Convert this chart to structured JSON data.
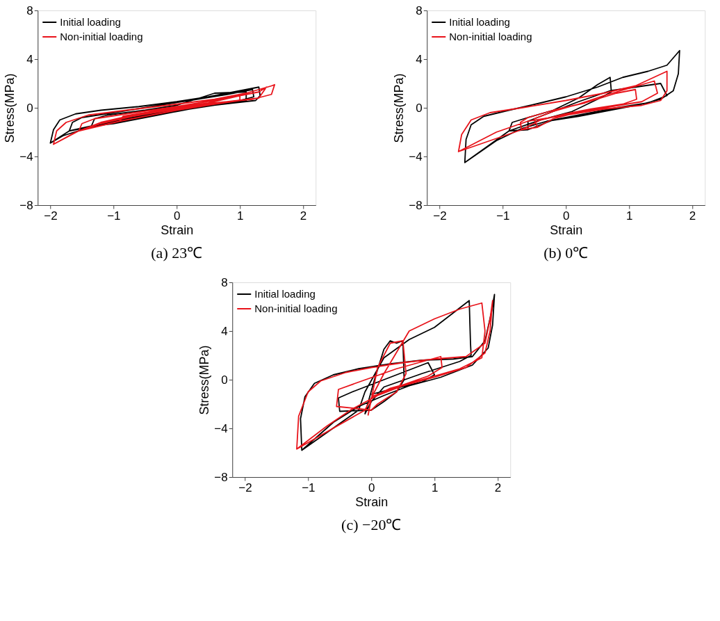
{
  "chart_data": [
    {
      "type": "line",
      "title": "(a) 23℃",
      "xlabel": "Strain",
      "ylabel": "Stress(MPa)",
      "xlim": [
        -2.2,
        2.2
      ],
      "xticks": [
        -2,
        -1,
        0,
        1,
        2
      ],
      "ylim": [
        -8,
        8
      ],
      "yticks": [
        -8,
        -4,
        0,
        4,
        8
      ],
      "grid": false,
      "legend": "top left",
      "line_style": "solid",
      "marker": "none",
      "series": [
        {
          "name": "Initial loading",
          "color": "#000000",
          "x": [
            -2.0,
            -1.95,
            -1.85,
            -1.6,
            -1.2,
            -0.6,
            0,
            0.5,
            0.9,
            1.3,
            1.32,
            1.25,
            0.9,
            0.4,
            0,
            -0.5,
            -1.0,
            -1.5,
            -1.8,
            -2.0,
            -1.7,
            -1.65,
            -1.5,
            -1.0,
            -0.4,
            0.2,
            0.8,
            1.2,
            1.22,
            1.0,
            0.5,
            0,
            -0.6,
            -1.2,
            -1.7,
            -1.35,
            -1.3,
            -1.1,
            -0.5,
            0,
            0.6,
            1.1,
            1.1,
            0.7,
            0.2,
            -0.3,
            -0.7,
            -1.0,
            -1.35
          ],
          "values": [
            -2.9,
            -1.8,
            -1.0,
            -0.5,
            -0.2,
            0.1,
            0.5,
            0.9,
            1.3,
            1.7,
            1.0,
            0.6,
            0.4,
            0.1,
            -0.2,
            -0.6,
            -1.1,
            -1.8,
            -2.3,
            -2.9,
            -1.9,
            -1.2,
            -0.8,
            -0.4,
            0.1,
            0.6,
            1.1,
            1.5,
            0.9,
            0.6,
            0.2,
            -0.3,
            -0.8,
            -1.4,
            -1.9,
            -1.5,
            -0.9,
            -0.6,
            -0.2,
            0.2,
            1.2,
            1.3,
            0.6,
            0.3,
            -0.1,
            -0.6,
            -1.0,
            -1.3,
            -1.5
          ]
        },
        {
          "name": "Non-initial loading",
          "color": "#e8131a",
          "x": [
            -1.95,
            -1.9,
            -1.75,
            -1.4,
            -0.8,
            0,
            0.6,
            1.1,
            1.5,
            1.55,
            1.5,
            1.2,
            0.6,
            0,
            -0.6,
            -1.2,
            -1.6,
            -1.95,
            -1.55,
            -1.5,
            -1.3,
            -0.8,
            0,
            0.7,
            1.3,
            1.42,
            1.3,
            0.8,
            0,
            -0.7,
            -1.2,
            -1.55,
            -0.9,
            -0.85,
            -0.5,
            0,
            0.5,
            1.0,
            1.0,
            0.6,
            0,
            -0.5,
            -0.9
          ],
          "values": [
            -3.0,
            -1.9,
            -1.2,
            -0.6,
            -0.2,
            0.3,
            0.7,
            1.2,
            1.8,
            1.9,
            1.1,
            0.7,
            0.4,
            0,
            -0.5,
            -1.2,
            -2.0,
            -3.0,
            -1.9,
            -1.3,
            -0.9,
            -0.5,
            0.1,
            0.7,
            1.3,
            1.7,
            0.8,
            0.5,
            -0.1,
            -0.7,
            -1.3,
            -1.9,
            -1.1,
            -0.7,
            -0.4,
            0,
            0.4,
            1.0,
            0.6,
            0.3,
            -0.2,
            -0.7,
            -1.1
          ]
        }
      ]
    },
    {
      "type": "line",
      "title": "(b) 0℃",
      "xlabel": "Strain",
      "ylabel": "Stress(MPa)",
      "xlim": [
        -2.2,
        2.2
      ],
      "xticks": [
        -2,
        -1,
        0,
        1,
        2
      ],
      "ylim": [
        -8,
        8
      ],
      "yticks": [
        -8,
        -4,
        0,
        4,
        8
      ],
      "grid": false,
      "legend": "top left",
      "line_style": "solid",
      "marker": "none",
      "series": [
        {
          "name": "Initial loading",
          "color": "#000000",
          "x": [
            -1.6,
            -1.58,
            -1.5,
            -1.3,
            -0.9,
            -0.4,
            0,
            0.5,
            0.9,
            1.3,
            1.6,
            1.8,
            1.78,
            1.7,
            1.5,
            1.2,
            0.8,
            0.2,
            -0.3,
            -0.7,
            -1.1,
            -1.6,
            -0.9,
            -0.85,
            -0.6,
            -0.2,
            0.2,
            0.5,
            0.7,
            0.72,
            0.5,
            0.1,
            -0.4,
            -0.9,
            -0.6,
            -0.6,
            -0.3,
            0.2,
            0.7,
            1.1,
            1.5,
            1.6,
            1.3,
            0.8,
            0.2,
            -0.2,
            -0.6
          ],
          "values": [
            -4.5,
            -2.6,
            -1.4,
            -0.7,
            -0.2,
            0.4,
            0.9,
            1.7,
            2.5,
            3.0,
            3.5,
            4.7,
            2.8,
            1.4,
            0.7,
            0.3,
            -0.1,
            -0.7,
            -1.1,
            -1.7,
            -2.7,
            -4.5,
            -1.9,
            -1.2,
            -0.8,
            -0.2,
            0.8,
            1.9,
            2.5,
            1.3,
            0.7,
            -0.3,
            -1.0,
            -1.9,
            -1.8,
            -1.1,
            -0.5,
            0.5,
            1.4,
            1.7,
            2.0,
            1.0,
            0.4,
            0,
            -0.6,
            -1.0,
            -1.8
          ]
        },
        {
          "name": "Non-initial loading",
          "color": "#e8131a",
          "x": [
            -1.7,
            -1.65,
            -1.5,
            -1.2,
            -0.7,
            0,
            0.6,
            1.1,
            1.6,
            1.6,
            1.5,
            1.2,
            0.6,
            0,
            -0.6,
            -1.1,
            -1.7,
            -0.7,
            -0.72,
            -0.6,
            -0.2,
            0.3,
            0.8,
            1.1,
            1.12,
            0.9,
            0.4,
            0,
            -0.4,
            -0.7,
            -0.45,
            -0.5,
            -0.2,
            0.2,
            0.6,
            1.4,
            1.45,
            1.2,
            0.6,
            0.1,
            -0.2,
            -0.45
          ],
          "values": [
            -3.6,
            -2.2,
            -1.0,
            -0.4,
            0,
            0.6,
            1.2,
            1.8,
            3.0,
            1.4,
            0.6,
            0.2,
            -0.1,
            -0.6,
            -1.1,
            -2.0,
            -3.6,
            -1.8,
            -1.2,
            -0.8,
            -0.2,
            0.4,
            1.2,
            1.5,
            0.7,
            0.3,
            -0.1,
            -0.5,
            -1.0,
            -1.8,
            -1.6,
            -0.9,
            -0.3,
            0.3,
            1.0,
            2.2,
            1.2,
            0.5,
            0,
            -0.5,
            -0.9,
            -1.6
          ]
        }
      ]
    },
    {
      "type": "line",
      "title": "(c) −20℃",
      "xlabel": "Strain",
      "ylabel": "Stress(MPa)",
      "xlim": [
        -2.2,
        2.2
      ],
      "xticks": [
        -2,
        -1,
        0,
        1,
        2
      ],
      "ylim": [
        -8,
        8
      ],
      "yticks": [
        -8,
        -4,
        0,
        4,
        8
      ],
      "grid": false,
      "legend": "top left",
      "line_style": "solid",
      "marker": "none",
      "series": [
        {
          "name": "Initial loading",
          "color": "#000000",
          "x": [
            -1.1,
            -1.12,
            -1.05,
            -0.9,
            -0.6,
            -0.2,
            0.3,
            0.8,
            1.3,
            1.6,
            1.8,
            1.9,
            1.95,
            1.92,
            1.85,
            1.6,
            1.1,
            0.6,
            0.2,
            -0.2,
            -0.6,
            -1.1,
            -0.2,
            -0.1,
            0.2,
            0.6,
            1.0,
            1.55,
            1.57,
            1.58,
            1.4,
            0.8,
            0.2,
            0,
            -0.1,
            0.05,
            0.2,
            0.3,
            0.4,
            0.5,
            0.52,
            0.4,
            0.2,
            0,
            -0.5,
            -0.52,
            -0.3,
            0,
            0.9,
            1.0,
            0.8,
            0.3,
            0
          ],
          "values": [
            -5.8,
            -3.2,
            -1.4,
            -0.3,
            0.4,
            0.9,
            1.3,
            1.6,
            1.7,
            1.9,
            3.2,
            5.5,
            7.0,
            4.5,
            2.6,
            1.2,
            0.2,
            -0.5,
            -1.3,
            -2.2,
            -3.5,
            -5.8,
            -2.5,
            -1.0,
            1.8,
            3.3,
            4.3,
            6.5,
            3.0,
            2.0,
            1.5,
            0.5,
            -0.6,
            -1.8,
            -2.8,
            0,
            2.5,
            3.2,
            3.0,
            3.2,
            0,
            -1.0,
            -1.8,
            -2.5,
            -2.6,
            -1.5,
            -1.0,
            -0.4,
            1.4,
            0.4,
            -0.2,
            -0.8,
            -1.2
          ]
        },
        {
          "name": "Non-initial loading",
          "color": "#e8131a",
          "x": [
            -1.18,
            -1.15,
            -1.0,
            -0.8,
            -0.4,
            0,
            0.5,
            1.0,
            1.5,
            1.8,
            1.88,
            1.92,
            1.88,
            1.8,
            1.5,
            1.0,
            0.5,
            0.1,
            -0.3,
            -0.7,
            -1.18,
            -0.1,
            0.2,
            0.6,
            1.0,
            1.4,
            1.75,
            1.8,
            1.75,
            1.4,
            0.8,
            0.3,
            0,
            -0.05,
            0.1,
            0.3,
            0.5,
            0.55,
            0.4,
            0.1,
            0,
            -0.55,
            -0.52,
            -0.2,
            0.4,
            1.1,
            1.12,
            0.9,
            0.4,
            0
          ],
          "values": [
            -5.7,
            -3.0,
            -1.0,
            -0.1,
            0.6,
            1.0,
            1.4,
            1.7,
            1.9,
            3.0,
            5.0,
            6.5,
            4.0,
            2.2,
            1.0,
            0.2,
            -0.5,
            -1.3,
            -2.4,
            -3.8,
            -5.7,
            -2.5,
            0.5,
            4.0,
            5.0,
            5.8,
            6.3,
            4.0,
            1.8,
            0.9,
            0,
            -0.7,
            -1.5,
            -2.9,
            1.0,
            3.0,
            3.2,
            0.5,
            -1.0,
            -2.0,
            -2.5,
            -2.2,
            -0.8,
            -0.2,
            0.9,
            1.9,
            1.0,
            0.3,
            -0.6,
            -1.4
          ]
        }
      ]
    }
  ]
}
